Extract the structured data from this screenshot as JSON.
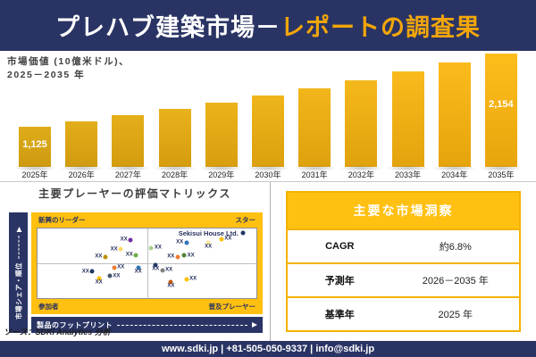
{
  "header": {
    "title_white": "プレハブ建築市場－",
    "title_yellow": "レポートの調査果"
  },
  "bar_section": {
    "subtitle_line1": "市場価値 (10億米ドル)、",
    "subtitle_line2": "2025－2035 年"
  },
  "matrix": {
    "title": "主要プレーヤーの評価マトリックス",
    "y_axis_label": "市場シェア・順位",
    "x_axis_label": "製品のフットプリント"
  },
  "insights": {
    "title": "主要な市場洞察",
    "rows": [
      {
        "label": "CAGR",
        "value": "約6.8%"
      },
      {
        "label": "予測年",
        "value": "2026－2035 年"
      },
      {
        "label": "基準年",
        "value": "2025 年"
      }
    ]
  },
  "source": "ソース：SDKI Analytics 分析",
  "footer": "www.sdki.jp | +81-505-050-9337 | info@sdki.jp",
  "colors": {
    "navy": "#2A3464",
    "gold": "#FFC011",
    "title_yellow": "#F2A60A"
  },
  "chart_data": [
    {
      "type": "bar",
      "title": "市場価値 (10億米ドル)、2025－2035 年",
      "xlabel": "",
      "ylabel": "市場価値 (10億米ドル)",
      "categories": [
        "2025年",
        "2026年",
        "2027年",
        "2028年",
        "2029年",
        "2030年",
        "2031年",
        "2032年",
        "2033年",
        "2034年",
        "2035年"
      ],
      "values": [
        1125,
        1201,
        1283,
        1370,
        1463,
        1562,
        1668,
        1782,
        1903,
        2032,
        2154
      ],
      "data_labels": {
        "2025年": "1,125",
        "2035年": "2,154"
      },
      "ylim": [
        0,
        2200
      ],
      "grid": false,
      "legend": false
    },
    {
      "type": "scatter",
      "title": "主要プレーヤーの評価マトリックス",
      "xlabel": "製品のフットプリント",
      "ylabel": "市場シェア・順位",
      "quadrants": {
        "top_left": "新興のリーダー",
        "top_right": "スター",
        "bottom_left": "参加者",
        "bottom_right": "普及プレーヤー"
      },
      "points": [
        {
          "x": 42.5,
          "y": 16.5,
          "color": "#7030A0",
          "label": "XX",
          "label_pos": "left"
        },
        {
          "x": 38,
          "y": 30,
          "color": "#FFD966",
          "label": "XX",
          "label_pos": "left"
        },
        {
          "x": 45,
          "y": 38,
          "color": "#70AD47",
          "label": "XX",
          "label_pos": "left"
        },
        {
          "x": 31,
          "y": 41,
          "color": "#BF9000",
          "label": "XX",
          "label_pos": "left"
        },
        {
          "x": 94,
          "y": 7,
          "color": "#1F3864",
          "label": "Sekisui House Ltd.",
          "label_pos": "left"
        },
        {
          "x": 84,
          "y": 15,
          "color": "#FFC000",
          "label": "XX",
          "label_pos": "right"
        },
        {
          "x": 78,
          "y": 21,
          "color": "#FFE699",
          "label": "XX",
          "label_pos": "below"
        },
        {
          "x": 68,
          "y": 20,
          "color": "#2E75B6",
          "label": "XX",
          "label_pos": "left"
        },
        {
          "x": 52,
          "y": 28,
          "color": "#A9D18E",
          "label": "XX",
          "label_pos": "right"
        },
        {
          "x": 64,
          "y": 41,
          "color": "#ED7D31",
          "label": "XX",
          "label_pos": "left"
        },
        {
          "x": 67,
          "y": 39,
          "color": "#538135",
          "label": "XX",
          "label_pos": "right"
        },
        {
          "x": 35,
          "y": 56,
          "color": "#ED7D31",
          "label": "XX",
          "label_pos": "right"
        },
        {
          "x": 46,
          "y": 56,
          "color": "#2E75B6",
          "label": "XX",
          "label_pos": "below"
        },
        {
          "x": 25,
          "y": 62,
          "color": "#1F3864",
          "label": "XX",
          "label_pos": "left"
        },
        {
          "x": 33,
          "y": 68,
          "color": "#44546A",
          "label": "XX",
          "label_pos": "right"
        },
        {
          "x": 28,
          "y": 72,
          "color": "#FFC000",
          "label": "XX",
          "label_pos": "below"
        },
        {
          "x": 54,
          "y": 53,
          "color": "#1F3864",
          "label": "XX",
          "label_pos": "below"
        },
        {
          "x": 57,
          "y": 60,
          "color": "#808080",
          "label": "XX",
          "label_pos": "right"
        },
        {
          "x": 61,
          "y": 77,
          "color": "#C55A11",
          "label": "XX",
          "label_pos": "below"
        },
        {
          "x": 68,
          "y": 73,
          "color": "#FFC000",
          "label": "XX",
          "label_pos": "right"
        }
      ]
    }
  ]
}
